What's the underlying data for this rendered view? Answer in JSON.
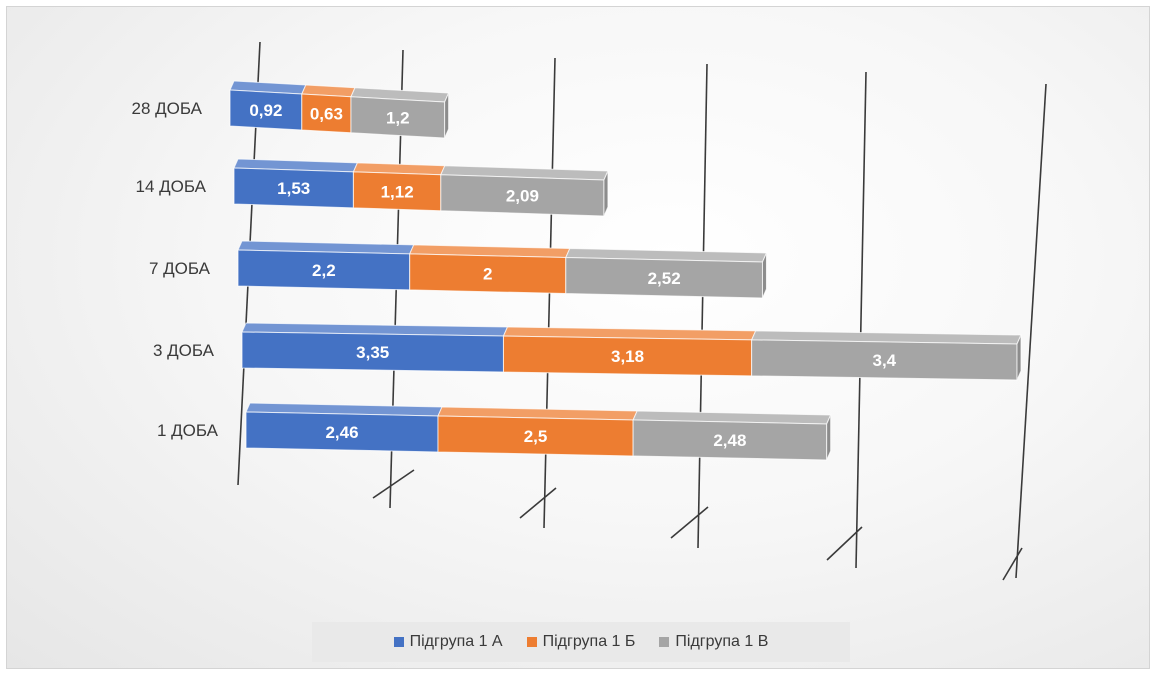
{
  "chart_data": {
    "type": "bar",
    "orientation": "horizontal",
    "stacked": true,
    "three_d": true,
    "grid": true,
    "legend_position": "bottom",
    "title": "",
    "xlabel": "",
    "ylabel": "",
    "categories": [
      "28 ДОБА",
      "14 ДОБА",
      "7 ДОБА",
      "3 ДОБА",
      "1 ДОБА"
    ],
    "series": [
      {
        "name": "Підгрупа 1 А",
        "color": "#4472C4",
        "values": [
          0.92,
          1.53,
          2.2,
          3.35,
          2.46
        ],
        "labels": [
          "0,92",
          "1,53",
          "2,2",
          "3,35",
          "2,46"
        ]
      },
      {
        "name": "Підгрупа 1 Б",
        "color": "#ED7D31",
        "values": [
          0.63,
          1.12,
          2,
          3.18,
          2.5
        ],
        "labels": [
          "0,63",
          "1,12",
          "2",
          "3,18",
          "2,5"
        ]
      },
      {
        "name": "Підгрупа 1 В",
        "color": "#A5A5A5",
        "values": [
          1.2,
          2.09,
          2.52,
          3.4,
          2.48
        ],
        "labels": [
          "1,2",
          "2,09",
          "2,52",
          "3,4",
          "2,48"
        ]
      }
    ]
  }
}
